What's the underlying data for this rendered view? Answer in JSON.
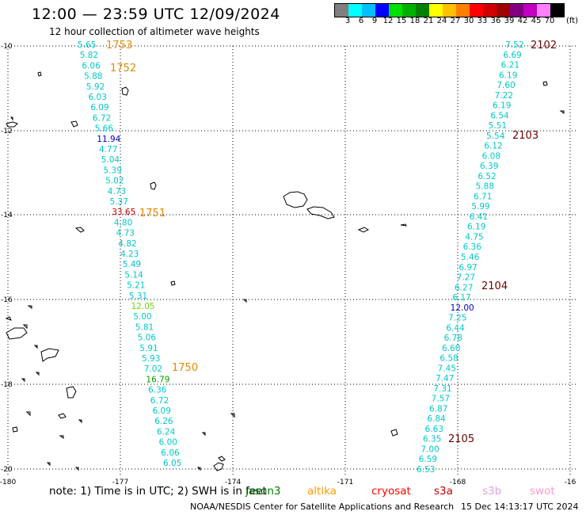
{
  "title": "12:00 — 23:59 UTC 12/09/2024",
  "subtitle": "12 hour collection of altimeter wave heights",
  "legend": {
    "colors": [
      "#7f7f7f",
      "#00ffff",
      "#00bfff",
      "#0000ff",
      "#00e000",
      "#00b000",
      "#008000",
      "#ffff00",
      "#ffc000",
      "#ff8000",
      "#ff0000",
      "#d00000",
      "#a00000",
      "#800080",
      "#c000c0",
      "#ff80ff",
      "#000000"
    ],
    "labels": [
      "3",
      "6",
      "9",
      "12",
      "15",
      "18",
      "21",
      "24",
      "27",
      "30",
      "33",
      "36",
      "39",
      "42",
      "45",
      "70"
    ],
    "unit": "(ft)"
  },
  "axes": {
    "x_ticks": [
      "-180",
      "-177",
      "-174",
      "-171",
      "-168",
      "-16"
    ],
    "y_ticks": [
      "-10",
      "-12",
      "-14",
      "-16",
      "-18",
      "-20"
    ]
  },
  "passes": [
    {
      "id": "1753",
      "color": "#e08a00"
    },
    {
      "id": "1752",
      "color": "#e08a00"
    },
    {
      "id": "1751",
      "color": "#e08a00"
    },
    {
      "id": "1750",
      "color": "#e08a00"
    },
    {
      "id": "2102",
      "color": "#6b0000"
    },
    {
      "id": "2103",
      "color": "#6b0000"
    },
    {
      "id": "2104",
      "color": "#6b0000"
    },
    {
      "id": "2105",
      "color": "#6b0000"
    }
  ],
  "track_west": [
    {
      "v": "5.65",
      "c": "#00c8c8"
    },
    {
      "v": "5.82",
      "c": "#00c8c8"
    },
    {
      "v": "6.06",
      "c": "#00c8c8"
    },
    {
      "v": "5.88",
      "c": "#00c8c8"
    },
    {
      "v": "5.92",
      "c": "#00c8c8"
    },
    {
      "v": "6.03",
      "c": "#00c8c8"
    },
    {
      "v": "6.09",
      "c": "#00c8c8"
    },
    {
      "v": "6.72",
      "c": "#00c8c8"
    },
    {
      "v": "5.66",
      "c": "#00c8c8"
    },
    {
      "v": "11.94",
      "c": "#0000c0"
    },
    {
      "v": "4.77",
      "c": "#00c8c8"
    },
    {
      "v": "5.04",
      "c": "#00c8c8"
    },
    {
      "v": "5.39",
      "c": "#00c8c8"
    },
    {
      "v": "5.02",
      "c": "#00c8c8"
    },
    {
      "v": "4.73",
      "c": "#00c8c8"
    },
    {
      "v": "5.37",
      "c": "#00c8c8"
    },
    {
      "v": "33.65",
      "c": "#c00000"
    },
    {
      "v": "4.80",
      "c": "#00c8c8"
    },
    {
      "v": "4.73",
      "c": "#00c8c8"
    },
    {
      "v": "4.82",
      "c": "#00c8c8"
    },
    {
      "v": "4.23",
      "c": "#00c8c8"
    },
    {
      "v": "5.49",
      "c": "#00c8c8"
    },
    {
      "v": "5.14",
      "c": "#00c8c8"
    },
    {
      "v": "5.21",
      "c": "#00c8c8"
    },
    {
      "v": "5.31",
      "c": "#00c8c8"
    },
    {
      "v": "12.05",
      "c": "#66dd00"
    },
    {
      "v": "5.00",
      "c": "#00c8c8"
    },
    {
      "v": "5.81",
      "c": "#00c8c8"
    },
    {
      "v": "5.06",
      "c": "#00c8c8"
    },
    {
      "v": "5.91",
      "c": "#00c8c8"
    },
    {
      "v": "5.93",
      "c": "#00c8c8"
    },
    {
      "v": "7.02",
      "c": "#00c8c8"
    },
    {
      "v": "16.79",
      "c": "#00a000"
    },
    {
      "v": "6.36",
      "c": "#00c8c8"
    },
    {
      "v": "6.72",
      "c": "#00c8c8"
    },
    {
      "v": "6.09",
      "c": "#00c8c8"
    },
    {
      "v": "6.26",
      "c": "#00c8c8"
    },
    {
      "v": "6.24",
      "c": "#00c8c8"
    },
    {
      "v": "6.00",
      "c": "#00c8c8"
    },
    {
      "v": "6.06",
      "c": "#00c8c8"
    },
    {
      "v": "6.05",
      "c": "#00c8c8"
    }
  ],
  "track_east": [
    {
      "v": "7.52",
      "c": "#00c8c8"
    },
    {
      "v": "6.69",
      "c": "#00c8c8"
    },
    {
      "v": "6.21",
      "c": "#00c8c8"
    },
    {
      "v": "6.19",
      "c": "#00c8c8"
    },
    {
      "v": "7.60",
      "c": "#00c8c8"
    },
    {
      "v": "7.22",
      "c": "#00c8c8"
    },
    {
      "v": "6.19",
      "c": "#00c8c8"
    },
    {
      "v": "6.54",
      "c": "#00c8c8"
    },
    {
      "v": "5.51",
      "c": "#00c8c8"
    },
    {
      "v": "5.54",
      "c": "#00c8c8"
    },
    {
      "v": "6.12",
      "c": "#00c8c8"
    },
    {
      "v": "6.08",
      "c": "#00c8c8"
    },
    {
      "v": "6.39",
      "c": "#00c8c8"
    },
    {
      "v": "6.52",
      "c": "#00c8c8"
    },
    {
      "v": "5.88",
      "c": "#00c8c8"
    },
    {
      "v": "6.71",
      "c": "#00c8c8"
    },
    {
      "v": "5.99",
      "c": "#00c8c8"
    },
    {
      "v": "6.41",
      "c": "#00c8c8"
    },
    {
      "v": "6.19",
      "c": "#00c8c8"
    },
    {
      "v": "4.75",
      "c": "#00c8c8"
    },
    {
      "v": "6.36",
      "c": "#00c8c8"
    },
    {
      "v": "5.46",
      "c": "#00c8c8"
    },
    {
      "v": "6.97",
      "c": "#00c8c8"
    },
    {
      "v": "7.27",
      "c": "#00c8c8"
    },
    {
      "v": "6.27",
      "c": "#00c8c8"
    },
    {
      "v": "6.17",
      "c": "#00c8c8"
    },
    {
      "v": "12.00",
      "c": "#0000c0"
    },
    {
      "v": "7.25",
      "c": "#00c8c8"
    },
    {
      "v": "6.44",
      "c": "#00c8c8"
    },
    {
      "v": "6.78",
      "c": "#00c8c8"
    },
    {
      "v": "6.60",
      "c": "#00c8c8"
    },
    {
      "v": "6.58",
      "c": "#00c8c8"
    },
    {
      "v": "7.45",
      "c": "#00c8c8"
    },
    {
      "v": "7.47",
      "c": "#00c8c8"
    },
    {
      "v": "7.31",
      "c": "#00c8c8"
    },
    {
      "v": "7.57",
      "c": "#00c8c8"
    },
    {
      "v": "6.87",
      "c": "#00c8c8"
    },
    {
      "v": "6.84",
      "c": "#00c8c8"
    },
    {
      "v": "6.63",
      "c": "#00c8c8"
    },
    {
      "v": "6.35",
      "c": "#00c8c8"
    },
    {
      "v": "7.00",
      "c": "#00c8c8"
    },
    {
      "v": "6.59",
      "c": "#00c8c8"
    },
    {
      "v": "6.53",
      "c": "#00c8c8"
    }
  ],
  "footer": {
    "note": "note:  1) Time is in UTC; 2) SWH is in feet",
    "satellites": [
      {
        "name": "jason3",
        "color": "#008000"
      },
      {
        "name": "altika",
        "color": "#ff9900"
      },
      {
        "name": "cryosat",
        "color": "#ff0000"
      },
      {
        "name": "s3a",
        "color": "#c00000"
      },
      {
        "name": "s3b",
        "color": "#e0a0e0"
      },
      {
        "name": "swot",
        "color": "#ff99cc"
      }
    ],
    "credit": "NOAA/NESDIS Center for Satellite Applications and Research",
    "timestamp": "15 Dec 14:13:17 UTC 2024"
  }
}
